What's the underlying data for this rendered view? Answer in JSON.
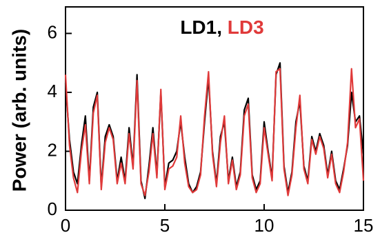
{
  "chart_data": {
    "type": "line",
    "ylabel": "Power (arb. units)",
    "legend_separator": ",",
    "x": [
      0,
      0.2,
      0.4,
      0.6,
      0.8,
      1.0,
      1.2,
      1.4,
      1.6,
      1.8,
      2.0,
      2.2,
      2.4,
      2.6,
      2.8,
      3.0,
      3.2,
      3.4,
      3.6,
      3.8,
      4.0,
      4.2,
      4.4,
      4.6,
      4.8,
      5.0,
      5.2,
      5.4,
      5.6,
      5.8,
      6.0,
      6.2,
      6.4,
      6.6,
      6.8,
      7.0,
      7.2,
      7.4,
      7.6,
      7.8,
      8.0,
      8.2,
      8.4,
      8.6,
      8.8,
      9.0,
      9.2,
      9.4,
      9.6,
      9.8,
      10.0,
      10.2,
      10.4,
      10.6,
      10.8,
      11.0,
      11.2,
      11.4,
      11.6,
      11.8,
      12.0,
      12.2,
      12.4,
      12.6,
      12.8,
      13.0,
      13.2,
      13.4,
      13.6,
      13.8,
      14.0,
      14.2,
      14.4,
      14.6,
      14.8,
      15.0
    ],
    "series": [
      {
        "name": "LD1",
        "color": "#000000",
        "values": [
          4.3,
          2.4,
          1.3,
          0.9,
          2.2,
          3.2,
          1.0,
          3.5,
          4.0,
          0.8,
          2.5,
          2.9,
          2.5,
          1.0,
          1.8,
          1.0,
          2.8,
          1.5,
          4.6,
          1.0,
          0.4,
          1.5,
          2.8,
          1.2,
          4.0,
          0.8,
          1.6,
          1.7,
          2.0,
          3.0,
          1.8,
          0.9,
          0.6,
          0.8,
          1.3,
          3.0,
          4.5,
          2.0,
          0.9,
          2.5,
          3.0,
          1.0,
          1.8,
          0.8,
          1.3,
          3.4,
          3.8,
          1.2,
          0.7,
          1.0,
          3.0,
          2.0,
          1.1,
          4.6,
          5.0,
          1.5,
          0.6,
          1.3,
          3.0,
          3.7,
          1.5,
          1.0,
          2.5,
          2.0,
          2.6,
          2.2,
          1.2,
          2.0,
          1.0,
          0.7,
          1.4,
          2.2,
          4.0,
          3.0,
          3.2,
          1.9
        ]
      },
      {
        "name": "LD3",
        "color": "#e03a3a",
        "values": [
          4.6,
          2.2,
          1.1,
          0.6,
          2.0,
          2.9,
          0.9,
          3.3,
          3.9,
          0.7,
          2.3,
          2.8,
          2.4,
          0.9,
          1.6,
          0.9,
          2.6,
          1.4,
          4.4,
          0.9,
          0.5,
          1.3,
          2.6,
          1.1,
          4.1,
          0.7,
          1.4,
          1.5,
          1.8,
          3.2,
          1.6,
          0.8,
          0.6,
          0.7,
          1.2,
          3.2,
          4.7,
          1.9,
          0.8,
          2.3,
          3.2,
          0.9,
          1.7,
          0.7,
          1.2,
          3.2,
          3.6,
          1.1,
          0.6,
          0.9,
          2.8,
          1.9,
          1.0,
          4.7,
          4.8,
          1.4,
          0.5,
          1.2,
          2.8,
          3.9,
          1.4,
          0.9,
          2.4,
          1.9,
          2.5,
          2.1,
          1.1,
          1.9,
          0.9,
          0.6,
          1.3,
          2.3,
          4.8,
          2.8,
          3.1,
          1.0
        ]
      }
    ],
    "xlim": [
      0,
      15
    ],
    "xticks": [
      0,
      5,
      10,
      15
    ],
    "ylim": [
      0,
      6.9
    ],
    "yticks": [
      0,
      2,
      4,
      6
    ]
  }
}
